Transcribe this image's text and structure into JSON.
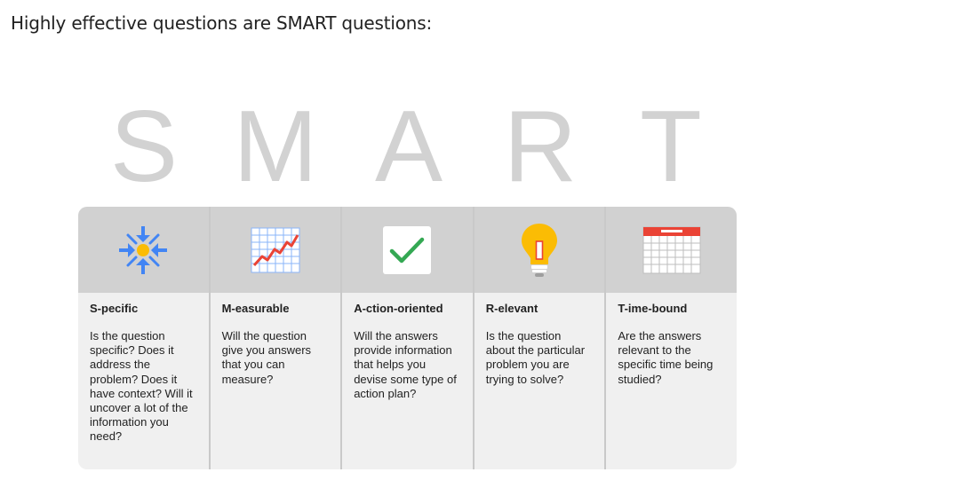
{
  "heading": "Highly effective questions are SMART questions:",
  "acronym": [
    "S",
    "M",
    "A",
    "R",
    "T"
  ],
  "columns": [
    {
      "icon": "focus-arrows-icon",
      "title": "S-pecific",
      "text": "Is the question specific? Does it address the problem? Does it have context? Will it uncover a lot of the information you need?"
    },
    {
      "icon": "line-chart-icon",
      "title": "M-easurable",
      "text": "Will the question give you answers that you can measure?"
    },
    {
      "icon": "checkmark-icon",
      "title": "A-ction-oriented",
      "text": "Will the answers provide information that helps you devise some type of action plan?"
    },
    {
      "icon": "lightbulb-icon",
      "title": "R-elevant",
      "text": "Is the question about the particular problem you are trying to solve?"
    },
    {
      "icon": "calendar-icon",
      "title": "T-ime-bound",
      "text": "Are the answers relevant to the specific time being studied?"
    }
  ],
  "colors": {
    "letter": "#d2d2d2",
    "header_band": "#d1d1d1",
    "card_bg": "#f0f0f0",
    "arrow_blue": "#4285f4",
    "center_yellow": "#fbbc04",
    "chart_red": "#ea4335",
    "check_green": "#34a853"
  }
}
